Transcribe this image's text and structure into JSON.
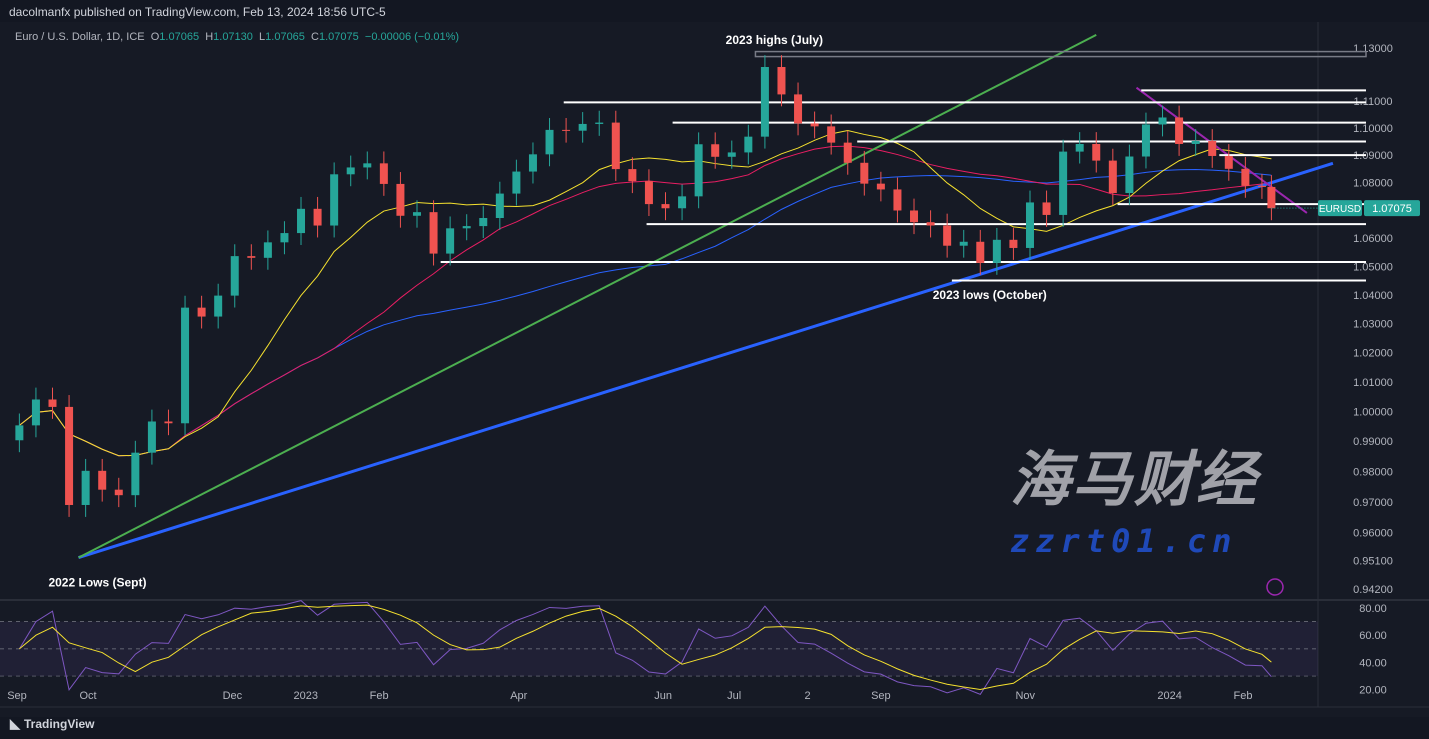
{
  "header": {
    "publisher_line": "dacolmanfx published on TradingView.com, Feb 13, 2024 18:56 UTC-5"
  },
  "legend": {
    "symbol": "Euro / U.S. Dollar, 1D, ICE",
    "open_label": "O",
    "open": "1.07065",
    "high_label": "H",
    "high": "1.07130",
    "low_label": "L",
    "low": "1.07065",
    "close_label": "C",
    "close": "1.07075",
    "change": "−0.00006 (−0.01%)"
  },
  "price_tag": {
    "symbol": "EURUSD",
    "price": "1.07075",
    "color": "#26a69a"
  },
  "footer": {
    "brand": "TradingView"
  },
  "watermark": {
    "line1": "海马财经",
    "line2": "zzrt01.cn"
  },
  "chart_data": {
    "type": "candlestick",
    "scale": "log",
    "ylim": [
      0.942,
      1.13
    ],
    "y_ticks": [
      "1.13000",
      "1.11000",
      "1.10000",
      "1.09000",
      "1.08000",
      "1.06000",
      "1.05000",
      "1.04000",
      "1.03000",
      "1.02000",
      "1.01000",
      "1.00000",
      "0.99000",
      "0.98000",
      "0.97000",
      "0.96000",
      "0.95100",
      "0.94200"
    ],
    "x_ticks": [
      {
        "label": "Sep",
        "date": "2022-09-01"
      },
      {
        "label": "Oct",
        "date": "2022-10-01"
      },
      {
        "label": "Dec",
        "date": "2022-12-01"
      },
      {
        "label": "2023",
        "date": "2023-01-01"
      },
      {
        "label": "Feb",
        "date": "2023-02-01"
      },
      {
        "label": "Apr",
        "date": "2023-04-01"
      },
      {
        "label": "Jun",
        "date": "2023-06-01"
      },
      {
        "label": "Jul",
        "date": "2023-07-01"
      },
      {
        "label": "2",
        "date": "2023-08-01"
      },
      {
        "label": "Sep",
        "date": "2023-09-01"
      },
      {
        "label": "Nov",
        "date": "2023-11-01"
      },
      {
        "label": "2024",
        "date": "2024-01-01"
      },
      {
        "label": "Feb",
        "date": "2024-02-01"
      }
    ],
    "colors": {
      "up": "#26a69a",
      "down": "#ef5350",
      "ma_fast": "#f5e12f",
      "ma_mid": "#e91e63",
      "ma_slow": "#2962ff",
      "rsi": "#7e57c2",
      "rsi_ma": "#f5e12f"
    },
    "closes": [
      [
        "2022-09-02",
        0.9953
      ],
      [
        "2022-09-09",
        1.004
      ],
      [
        "2022-09-16",
        1.0015
      ],
      [
        "2022-09-23",
        0.969
      ],
      [
        "2022-09-30",
        0.9802
      ],
      [
        "2022-10-07",
        0.974
      ],
      [
        "2022-10-14",
        0.9722
      ],
      [
        "2022-10-21",
        0.9862
      ],
      [
        "2022-10-28",
        0.9966
      ],
      [
        "2022-11-04",
        0.996
      ],
      [
        "2022-11-11",
        1.0355
      ],
      [
        "2022-11-18",
        1.0324
      ],
      [
        "2022-11-25",
        1.0397
      ],
      [
        "2022-12-02",
        1.0536
      ],
      [
        "2022-12-09",
        1.053
      ],
      [
        "2022-12-16",
        1.0585
      ],
      [
        "2022-12-23",
        1.0618
      ],
      [
        "2022-12-30",
        1.0705
      ],
      [
        "2023-01-06",
        1.0645
      ],
      [
        "2023-01-13",
        1.083
      ],
      [
        "2023-01-20",
        1.0855
      ],
      [
        "2023-01-27",
        1.087
      ],
      [
        "2023-02-03",
        1.0795
      ],
      [
        "2023-02-10",
        1.068
      ],
      [
        "2023-02-17",
        1.0693
      ],
      [
        "2023-02-24",
        1.0545
      ],
      [
        "2023-03-03",
        1.0635
      ],
      [
        "2023-03-10",
        1.0643
      ],
      [
        "2023-03-17",
        1.0672
      ],
      [
        "2023-03-24",
        1.076
      ],
      [
        "2023-03-31",
        1.084
      ],
      [
        "2023-04-07",
        1.0903
      ],
      [
        "2023-04-14",
        1.0993
      ],
      [
        "2023-04-21",
        1.099
      ],
      [
        "2023-04-28",
        1.1015
      ],
      [
        "2023-05-05",
        1.102
      ],
      [
        "2023-05-12",
        1.0849
      ],
      [
        "2023-05-19",
        1.0805
      ],
      [
        "2023-05-26",
        1.0722
      ],
      [
        "2023-06-02",
        1.0707
      ],
      [
        "2023-06-09",
        1.075
      ],
      [
        "2023-06-16",
        1.094
      ],
      [
        "2023-06-23",
        1.0894
      ],
      [
        "2023-06-30",
        1.091
      ],
      [
        "2023-07-07",
        1.0968
      ],
      [
        "2023-07-14",
        1.1228
      ],
      [
        "2023-07-21",
        1.1125
      ],
      [
        "2023-07-28",
        1.1017
      ],
      [
        "2023-08-04",
        1.1006
      ],
      [
        "2023-08-11",
        1.0946
      ],
      [
        "2023-08-18",
        1.0872
      ],
      [
        "2023-08-25",
        1.0796
      ],
      [
        "2023-09-01",
        1.0775
      ],
      [
        "2023-09-08",
        1.0699
      ],
      [
        "2023-09-15",
        1.0657
      ],
      [
        "2023-09-22",
        1.0645
      ],
      [
        "2023-09-29",
        1.0573
      ],
      [
        "2023-10-06",
        1.0587
      ],
      [
        "2023-10-13",
        1.0512
      ],
      [
        "2023-10-20",
        1.0594
      ],
      [
        "2023-10-27",
        1.0565
      ],
      [
        "2023-11-03",
        1.0728
      ],
      [
        "2023-11-10",
        1.0683
      ],
      [
        "2023-11-17",
        1.0913
      ],
      [
        "2023-11-24",
        1.0941
      ],
      [
        "2023-12-01",
        1.088
      ],
      [
        "2023-12-08",
        1.0762
      ],
      [
        "2023-12-15",
        1.0895
      ],
      [
        "2023-12-22",
        1.1013
      ],
      [
        "2023-12-29",
        1.1039
      ],
      [
        "2024-01-05",
        1.0941
      ],
      [
        "2024-01-12",
        1.0952
      ],
      [
        "2024-01-19",
        1.0897
      ],
      [
        "2024-01-26",
        1.085
      ],
      [
        "2024-02-02",
        1.0788
      ],
      [
        "2024-02-09",
        1.0784
      ],
      [
        "2024-02-13",
        1.0707
      ]
    ],
    "horizontal_levels": [
      {
        "price": 1.1275,
        "from": "2023-07-10",
        "style": "band"
      },
      {
        "price": 1.114,
        "from": "2023-12-20"
      },
      {
        "price": 1.1095,
        "from": "2023-04-20"
      },
      {
        "price": 1.102,
        "from": "2023-06-05"
      },
      {
        "price": 1.095,
        "from": "2023-08-22"
      },
      {
        "price": 1.09,
        "from": "2024-01-22"
      },
      {
        "price": 1.0722,
        "from": "2023-12-10"
      },
      {
        "price": 1.065,
        "from": "2023-05-25"
      },
      {
        "price": 1.0515,
        "from": "2023-02-27"
      },
      {
        "price": 1.045,
        "from": "2023-10-01"
      }
    ],
    "trendlines": [
      {
        "color": "#2962ff",
        "from": [
          "2022-09-27",
          0.952
        ],
        "to": [
          "2024-03-10",
          1.087
        ]
      },
      {
        "color": "#4caf50",
        "from": [
          "2022-09-27",
          0.952
        ],
        "to": [
          "2023-12-01",
          1.135
        ]
      },
      {
        "color": "#9c27b0",
        "from": [
          "2023-12-18",
          1.115
        ],
        "to": [
          "2024-02-28",
          1.069
        ]
      }
    ],
    "annotations": [
      {
        "text": "2023 highs (July)",
        "date": "2023-07-18",
        "price": 1.133
      },
      {
        "text": "2023 lows (October)",
        "date": "2023-10-17",
        "price": 1.04
      },
      {
        "text": "2022 Lows (Sept)",
        "date": "2022-10-05",
        "price": 0.944
      }
    ],
    "rsi_ticks": [
      "80.00",
      "60.00",
      "40.00",
      "20.00"
    ],
    "rsi_band": [
      30,
      70
    ]
  }
}
